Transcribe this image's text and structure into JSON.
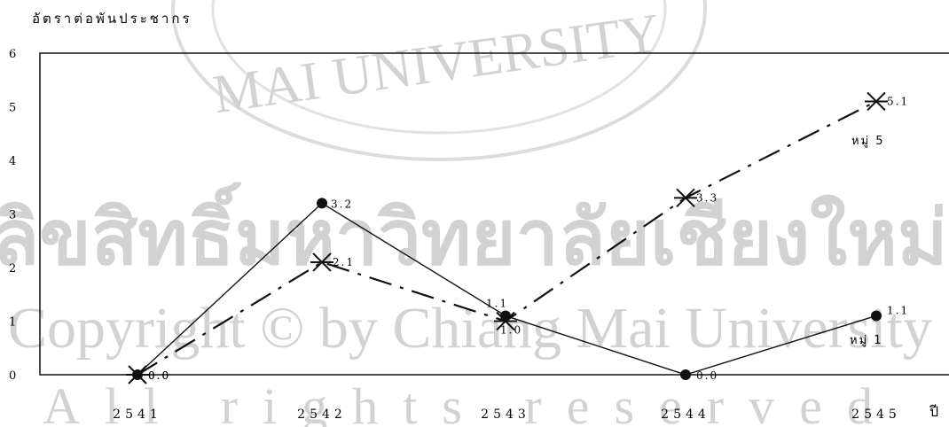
{
  "watermark": {
    "line_top": "MAI UNIVERSITY",
    "line_thai": "ลิขสิทธิ์มหาวิทยาลัยเชียงใหม่",
    "line_copyright": "Copyright © by Chiang Mai University",
    "line_rights": "All rights reserved"
  },
  "chart_data": {
    "type": "line",
    "ylabel": "อัตราต่อพันประชากร",
    "xlabel": "ปี",
    "categories": [
      "2541",
      "2542",
      "2543",
      "2544",
      "2545"
    ],
    "ylim": [
      0,
      6
    ],
    "yticks": [
      "0",
      "1",
      "2",
      "3",
      "4",
      "5",
      "6"
    ],
    "grid": false,
    "series": [
      {
        "name": "หมู่ 1",
        "style": "solid",
        "marker": "dot",
        "values": [
          0.0,
          3.2,
          1.1,
          0.0,
          1.1
        ],
        "labels": [
          "0.0",
          "3.2",
          "1.1",
          "0.0",
          "1.1"
        ]
      },
      {
        "name": "หมู่ 5",
        "style": "dashed",
        "marker": "asterisk",
        "values": [
          0.0,
          2.1,
          1.0,
          3.3,
          5.1
        ],
        "labels": [
          "0.0",
          "2.1",
          "1.0",
          "3.3",
          "5.1"
        ]
      }
    ],
    "colors": {
      "line": "#111111",
      "watermark": "#d2d2d2"
    }
  }
}
